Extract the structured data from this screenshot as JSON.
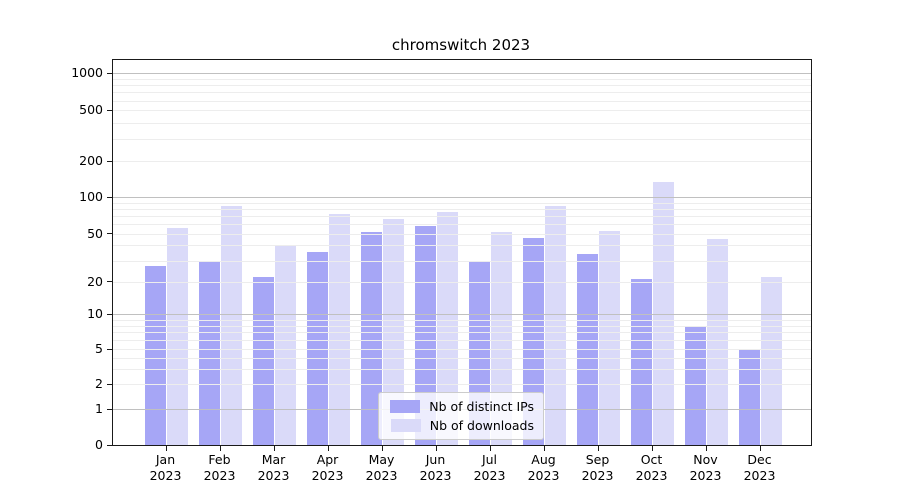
{
  "chart_data": {
    "type": "bar",
    "title": "chromswitch 2023",
    "categories": [
      "Jan",
      "Feb",
      "Mar",
      "Apr",
      "May",
      "Jun",
      "Jul",
      "Aug",
      "Sep",
      "Oct",
      "Nov",
      "Dec"
    ],
    "category_year": "2023",
    "series": [
      {
        "name": "Nb of distinct IPs",
        "color": "#a6a6f6",
        "values": [
          27,
          29,
          22,
          35,
          52,
          58,
          30,
          46,
          34,
          21,
          8,
          5
        ]
      },
      {
        "name": "Nb of downloads",
        "color": "#dadaf9",
        "values": [
          56,
          84,
          40,
          72,
          66,
          75,
          52,
          84,
          53,
          134,
          45,
          22
        ]
      }
    ],
    "xlabel": "",
    "ylabel": "",
    "yscale": "symlog",
    "yticks": [
      0,
      1,
      2,
      5,
      10,
      20,
      50,
      100,
      200,
      500,
      1000
    ],
    "ylim": [
      0,
      1250
    ],
    "grid": true,
    "legend_position": "lower center"
  }
}
